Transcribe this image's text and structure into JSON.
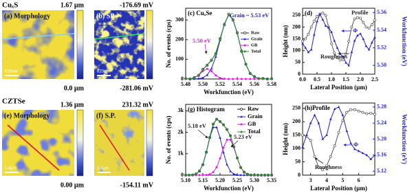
{
  "materials": [
    "CuₓS",
    "CZTSe"
  ],
  "panels": [
    {
      "label": "(a) Morphology",
      "max": "1.67 µm",
      "min": "0.0 µm",
      "scalebar": "620nm"
    },
    {
      "label": "(b) SP",
      "max": "-176.69 mV",
      "min": "-281.06 mV",
      "scalebar": "620nm"
    },
    {
      "label": "(e) Morphology",
      "max": "1.36 µm",
      "min": "0.00 µm",
      "scalebar": "1.4µm"
    },
    {
      "label": "(f) S.P.",
      "max": "231.32 mV",
      "min": "-154.11 mV",
      "scalebar": "1.4µm"
    }
  ],
  "chart_data": [
    {
      "type": "line",
      "title": "(c) CuₓSe",
      "xlabel": "Workfunction (eV)",
      "ylabel": "No. of events (cps)",
      "x": [
        5.48,
        5.485,
        5.49,
        5.495,
        5.5,
        5.505,
        5.51,
        5.515,
        5.52,
        5.525,
        5.53,
        5.535,
        5.54,
        5.545,
        5.55,
        5.555,
        5.56,
        5.565,
        5.57,
        5.575,
        5.58
      ],
      "xlim": [
        5.48,
        5.58
      ],
      "xticks": [
        5.48,
        {
          "value": 5.5,
          "label": "5.50"
        },
        5.52,
        5.54,
        5.56,
        5.58
      ],
      "ylim": [
        0,
        360
      ],
      "yticks": [
        0,
        100,
        200,
        300
      ],
      "grid": false,
      "legend": "upper right",
      "series": [
        {
          "name": "Raw",
          "color": "#222222",
          "marker": "open-circle",
          "values": [
            2,
            0,
            7,
            18,
            49,
            70,
            96,
            128,
            205,
            276,
            330,
            300,
            236,
            141,
            75,
            28,
            12,
            2,
            3,
            0,
            1
          ]
        },
        {
          "name": "Grain",
          "color": "#1f1fd6",
          "marker": "triangle",
          "values": [
            0,
            0,
            0,
            2,
            6,
            20,
            53,
            113,
            197,
            280,
            325,
            304,
            232,
            145,
            73,
            30,
            10,
            3,
            1,
            0,
            0
          ]
        },
        {
          "name": "GB",
          "color": "#e619e6",
          "marker": "circle",
          "values": [
            0,
            1,
            5,
            19,
            40,
            52,
            40,
            19,
            5,
            1,
            0,
            0,
            0,
            0,
            0,
            0,
            0,
            0,
            0,
            0,
            0
          ]
        },
        {
          "name": "Total",
          "color": "#2e8b2e",
          "marker": "circle",
          "values": [
            0,
            1,
            5,
            21,
            46,
            72,
            93,
            132,
            202,
            281,
            325,
            304,
            232,
            145,
            73,
            30,
            10,
            3,
            1,
            0,
            0
          ]
        }
      ],
      "annotations": [
        {
          "text": "Grain ~ 5.53 eV",
          "color": "#1f1fd6"
        },
        {
          "text": "5.50 eV",
          "color": "#e619e6"
        }
      ]
    },
    {
      "type": "line",
      "title": "(d)",
      "xlabel": "Lateral Position (µm)",
      "ylabel": "Height (nm)",
      "y2label": "Workfunction (eV)",
      "x": [
        0,
        0.1,
        0.2,
        0.3,
        0.4,
        0.5,
        0.6,
        0.7,
        0.8,
        0.9,
        1.0,
        1.1,
        1.2,
        1.3,
        1.4,
        1.5,
        1.6,
        1.7,
        1.8,
        1.9,
        2.0,
        2.1,
        2.2,
        2.3,
        2.4,
        2.5
      ],
      "xlim": [
        0,
        2.5
      ],
      "xticks": [
        {
          "value": 0,
          "label": "0.0"
        },
        0.5,
        {
          "value": 1,
          "label": "1.0"
        },
        1.5,
        {
          "value": 2,
          "label": "2.0"
        },
        2.5
      ],
      "ylim": [
        0,
        280
      ],
      "yticks": [
        0,
        50,
        100,
        150,
        200,
        250
      ],
      "y2lim": [
        5.49,
        5.565
      ],
      "y2ticks": [
        {
          "value": 5.5,
          "label": "5.50"
        },
        5.52,
        5.54,
        5.56
      ],
      "y2color": "#1f1fd6",
      "grid": false,
      "series": [
        {
          "color": "#555555",
          "marker": "open-circle",
          "values": [
            140,
            150,
            170,
            200,
            225,
            245,
            255,
            260,
            250,
            200,
            130,
            90,
            70,
            60,
            62,
            85,
            140,
            200,
            235,
            240,
            238,
            220,
            200,
            195,
            210,
            230
          ]
        },
        {
          "color": "#1f1fd6",
          "marker": "triangle",
          "axis": "y2",
          "values": [
            5.525,
            5.52,
            5.515,
            5.518,
            5.535,
            5.55,
            5.558,
            5.552,
            5.545,
            5.543,
            5.538,
            5.528,
            5.52,
            5.513,
            5.51,
            5.503,
            5.5,
            5.515,
            5.528,
            5.534,
            5.536,
            5.53,
            5.522,
            5.518,
            5.526,
            5.532
          ]
        }
      ],
      "annotations": [
        {
          "text": "Profile",
          "color": "#222222"
        },
        {
          "text": "Φ",
          "color": "#1f1fd6"
        },
        {
          "text": "Roughness",
          "color": "#222222"
        }
      ]
    },
    {
      "type": "line",
      "title": "(g) Histogram",
      "xlabel": "Workfunction (eV)",
      "ylabel": "No. of events (cps)",
      "x": [
        5.1,
        5.11,
        5.12,
        5.13,
        5.14,
        5.15,
        5.16,
        5.17,
        5.18,
        5.19,
        5.2,
        5.21,
        5.22,
        5.23,
        5.24,
        5.25,
        5.26,
        5.27,
        5.28,
        5.29,
        5.3,
        5.31,
        5.32,
        5.33,
        5.34,
        5.35
      ],
      "xlim": [
        5.1,
        5.35
      ],
      "xticks": [
        {
          "value": 5.1,
          "label": "5.10"
        },
        5.15,
        {
          "value": 5.2,
          "label": "5.20"
        },
        5.25,
        {
          "value": 5.3,
          "label": "5.30"
        },
        5.35
      ],
      "ylim": [
        0,
        3300
      ],
      "yticks": [
        0,
        {
          "value": 1000,
          "label": "1k"
        },
        {
          "value": 2000,
          "label": "2k"
        },
        {
          "value": 3000,
          "label": "3k"
        }
      ],
      "grid": false,
      "legend": "upper right",
      "series": [
        {
          "name": "Raw",
          "color": "#222222",
          "marker": "open-circle",
          "values": [
            0,
            3,
            9,
            55,
            190,
            490,
            1070,
            1760,
            2380,
            2610,
            2500,
            2350,
            2130,
            1840,
            1320,
            800,
            360,
            140,
            42,
            6,
            3,
            1,
            0,
            2,
            0,
            1
          ]
        },
        {
          "name": "Grain",
          "color": "#1f1fd6",
          "marker": "triangle",
          "values": [
            0,
            2,
            11,
            52,
            183,
            498,
            1054,
            1738,
            2230,
            2230,
            1738,
            1054,
            498,
            183,
            52,
            11,
            2,
            0,
            0,
            0,
            0,
            0,
            0,
            0,
            0,
            0
          ]
        },
        {
          "name": "GB",
          "color": "#e619e6",
          "marker": "circle",
          "values": [
            0,
            0,
            0,
            0,
            0,
            2,
            8,
            39,
            135,
            368,
            779,
            1285,
            1648,
            1648,
            1285,
            779,
            368,
            135,
            39,
            8,
            2,
            0,
            0,
            0,
            0,
            0
          ]
        },
        {
          "name": "Total",
          "color": "#2e8b2e",
          "marker": "circle",
          "values": [
            0,
            2,
            11,
            52,
            183,
            500,
            1062,
            1777,
            2365,
            2598,
            2517,
            2339,
            2146,
            1831,
            1337,
            790,
            370,
            135,
            39,
            8,
            2,
            0,
            0,
            0,
            0,
            0
          ]
        }
      ],
      "annotations": [
        {
          "text": "5.18 eV",
          "color": "#222222"
        },
        {
          "text": "5.23 eV",
          "color": "#222222"
        }
      ]
    },
    {
      "type": "line",
      "title": "(h)Profile",
      "xlabel": "Lateral Position (µm)",
      "ylabel": "Height (nm)",
      "y2label": "Workfunction (eV)",
      "x": [
        2.5,
        2.75,
        3.0,
        3.25,
        3.5,
        3.75,
        4.0,
        4.25,
        4.5,
        4.75,
        5.0,
        5.25,
        5.5,
        5.75,
        6.0,
        6.25,
        6.5,
        6.75,
        7.0
      ],
      "xlim": [
        2.5,
        7
      ],
      "xticks": [
        3,
        4,
        5,
        6
      ],
      "ylim": [
        0,
        270
      ],
      "yticks": [
        0,
        50,
        100,
        150,
        200,
        250
      ],
      "y2lim": [
        5.11,
        5.29
      ],
      "y2ticks": [
        5.12,
        5.16,
        {
          "value": 5.2,
          "label": "5.20"
        },
        5.24,
        5.28
      ],
      "y2color": "#1f1fd6",
      "grid": false,
      "series": [
        {
          "color": "#555555",
          "marker": "open-circle",
          "values": [
            150,
            145,
            130,
            70,
            30,
            20,
            35,
            70,
            110,
            160,
            205,
            235,
            245,
            245,
            240,
            235,
            230,
            232,
            228
          ]
        },
        {
          "color": "#1f1fd6",
          "marker": "triangle",
          "axis": "y2",
          "values": [
            5.18,
            5.21,
            5.24,
            5.26,
            5.24,
            5.2,
            5.21,
            5.25,
            5.275,
            5.28,
            5.26,
            5.22,
            5.19,
            5.175,
            5.17,
            5.165,
            5.16,
            5.15,
            5.16
          ]
        }
      ],
      "annotations": [
        {
          "text": "Roughness",
          "color": "#222222"
        },
        {
          "text": "Φ",
          "color": "#1f1fd6"
        }
      ]
    }
  ]
}
